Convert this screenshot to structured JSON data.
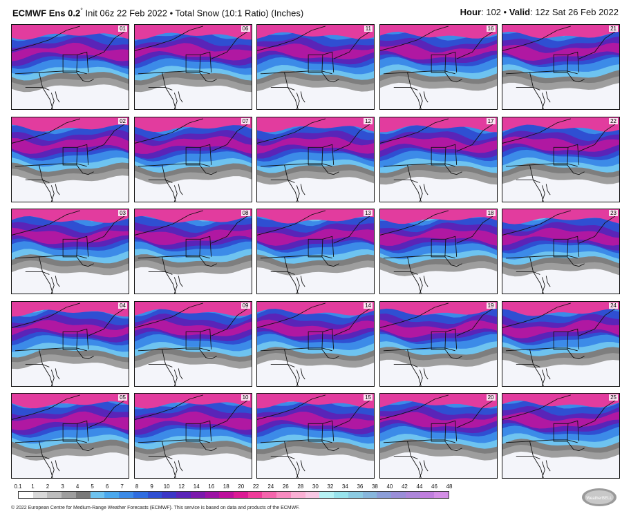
{
  "header": {
    "model": "ECMWF Ens 0.2",
    "degree": "°",
    "subtitle": " Init 06z 22 Feb 2022 • Total Snow (10:1 Ratio) (Inches)",
    "hour_label": "Hour",
    "hour_value": ": 102 • ",
    "valid_label": "Valid",
    "valid_value": ": 12z Sat 26 Feb 2022"
  },
  "members": [
    "01",
    "06",
    "11",
    "16",
    "21",
    "02",
    "07",
    "12",
    "17",
    "22",
    "03",
    "08",
    "13",
    "18",
    "23",
    "04",
    "09",
    "14",
    "19",
    "24",
    "05",
    "10",
    "15",
    "20",
    "25"
  ],
  "legend": {
    "ticks": [
      "0.1",
      "1",
      "2",
      "3",
      "4",
      "5",
      "6",
      "7",
      "8",
      "9",
      "10",
      "12",
      "14",
      "16",
      "18",
      "20",
      "22",
      "24",
      "26",
      "28",
      "30",
      "32",
      "34",
      "36",
      "38",
      "40",
      "42",
      "44",
      "46",
      "48"
    ],
    "colors": [
      "#ffffff",
      "#d9d9d9",
      "#bdbdbd",
      "#9e9e9e",
      "#7a7a7a",
      "#6ec3f0",
      "#4aa8ee",
      "#3c8be8",
      "#2f6de0",
      "#2f4fd2",
      "#3b36c6",
      "#5a24b8",
      "#7b1aac",
      "#9c13a4",
      "#bd0f9c",
      "#dc1a94",
      "#ef3c9a",
      "#f565ac",
      "#f98bc0",
      "#fbb0d4",
      "#f8c8e4",
      "#b6f2f4",
      "#98e3ec",
      "#8ccbe2",
      "#87b6dc",
      "#8c9ed8",
      "#9a8ed8",
      "#ad86da",
      "#c07ede",
      "#d48ee6"
    ]
  },
  "footer": "© 2022 European Centre for Medium-Range Weather Forecasts (ECMWF). This service is based on data and products of the ECMWF.",
  "logo_text": "WeatherBELL"
}
